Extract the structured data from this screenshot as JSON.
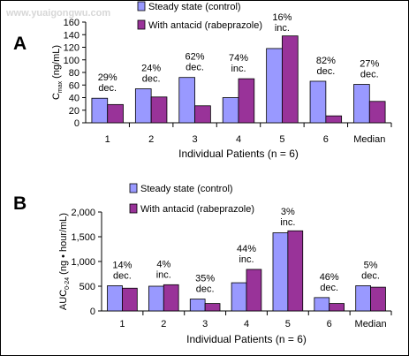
{
  "watermark": "www.yuaigongwu.com",
  "colors": {
    "control": "#9999ff",
    "antacid": "#993399",
    "bar_stroke": "#000000"
  },
  "chart_data": [
    {
      "type": "bar",
      "panel_label": "A",
      "ylabel": "C",
      "ylabel_sub": "max",
      "ylabel_unit": "(ng/mL)",
      "xlabel": "Individual Patients (n = 6)",
      "categories": [
        "1",
        "2",
        "3",
        "4",
        "5",
        "6",
        "Median"
      ],
      "ylim": [
        0,
        160
      ],
      "yticks": [
        0,
        20,
        40,
        60,
        80,
        100,
        120,
        140,
        160
      ],
      "ytick_labels": [
        "0",
        "20",
        "40",
        "60",
        "80",
        "100",
        "120",
        "140",
        "160"
      ],
      "series": [
        {
          "name": "Steady state (control)",
          "values": [
            39,
            54,
            72,
            40,
            118,
            66,
            61
          ]
        },
        {
          "name": "With antacid (rabeprazole)",
          "values": [
            29,
            41,
            27,
            70,
            138,
            11,
            34
          ]
        }
      ],
      "annotations": [
        [
          "29%",
          "dec."
        ],
        [
          "24%",
          "dec."
        ],
        [
          "62%",
          "dec."
        ],
        [
          "74%",
          "inc."
        ],
        [
          "16%",
          "inc."
        ],
        [
          "82%",
          "dec."
        ],
        [
          "27%",
          "dec."
        ]
      ],
      "legend_position": "top"
    },
    {
      "type": "bar",
      "panel_label": "B",
      "ylabel": "AUC",
      "ylabel_sub": "0-24",
      "ylabel_unit": "(ng • hour/mL)",
      "xlabel": "Individual Patients (n = 6)",
      "categories": [
        "1",
        "2",
        "3",
        "4",
        "5",
        "6",
        "Median"
      ],
      "ylim": [
        0,
        2000
      ],
      "yticks": [
        0,
        500,
        1000,
        1500,
        2000
      ],
      "ytick_labels": [
        "0",
        "500",
        "1,000",
        "1,500",
        "2,000"
      ],
      "series": [
        {
          "name": "Steady state (control)",
          "values": [
            510,
            500,
            240,
            570,
            1580,
            270,
            510
          ]
        },
        {
          "name": "With antacid (rabeprazole)",
          "values": [
            460,
            530,
            150,
            840,
            1620,
            150,
            480
          ]
        }
      ],
      "annotations": [
        [
          "14%",
          "dec."
        ],
        [
          "4%",
          "inc."
        ],
        [
          "35%",
          "dec."
        ],
        [
          "44%",
          "inc."
        ],
        [
          "3%",
          "inc."
        ],
        [
          "46%",
          "dec."
        ],
        [
          "5%",
          "dec."
        ]
      ],
      "legend_position": "top"
    }
  ]
}
